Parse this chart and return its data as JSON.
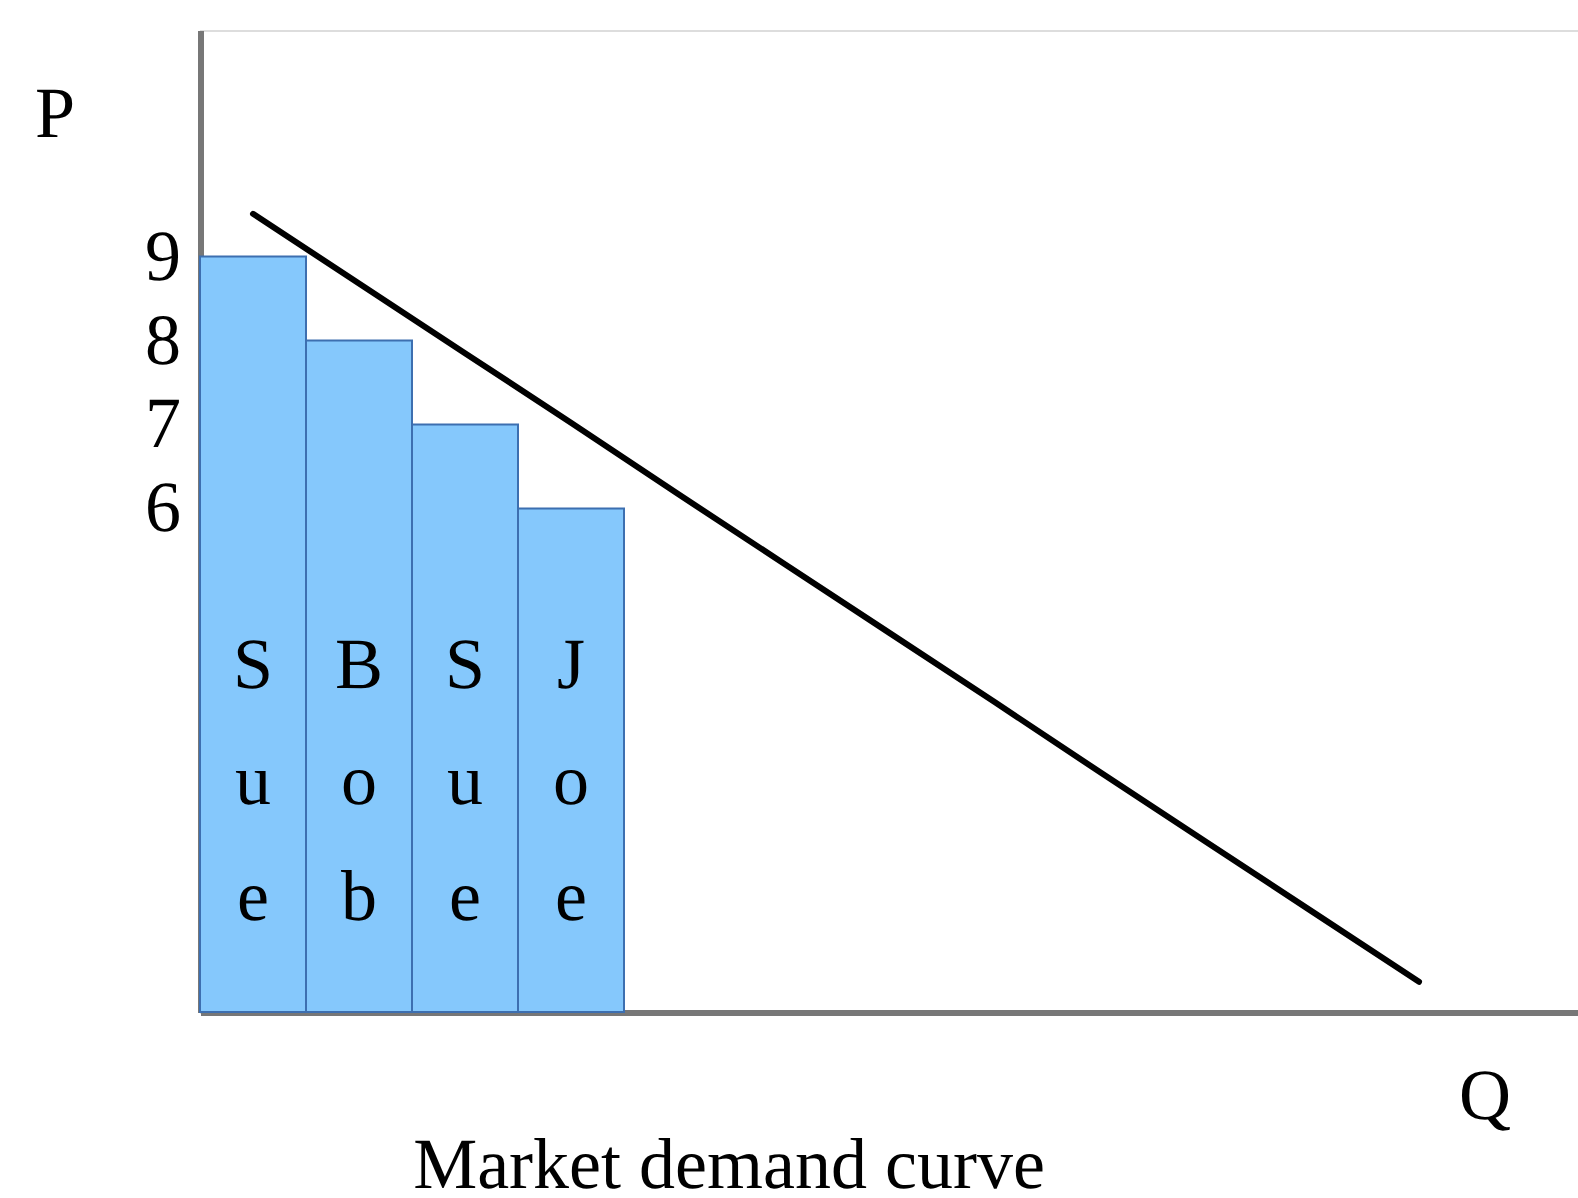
{
  "chart_data": {
    "type": "bar",
    "title": "Market demand curve",
    "xlabel": "Q",
    "ylabel": "P",
    "categories": [
      "Sue",
      "Bob",
      "Sue",
      "Joe",
      null,
      null,
      null,
      null,
      null,
      null,
      null,
      null,
      null
    ],
    "series": [
      {
        "color": "#85c8fc",
        "values": [
          9,
          8,
          7,
          6,
          null,
          null,
          null,
          null,
          null,
          null,
          null,
          null,
          null
        ]
      },
      {
        "type": "line",
        "color": "#000000",
        "values": [
          9.51,
          8.68,
          7.85,
          7.02,
          6.18,
          5.35,
          4.52,
          3.69,
          2.85,
          2.02,
          1.19,
          0.36,
          null
        ]
      }
    ],
    "ylim": [
      0,
      11.7
    ],
    "yticks": [
      9,
      8,
      7,
      6
    ],
    "tick_labels": "y"
  }
}
